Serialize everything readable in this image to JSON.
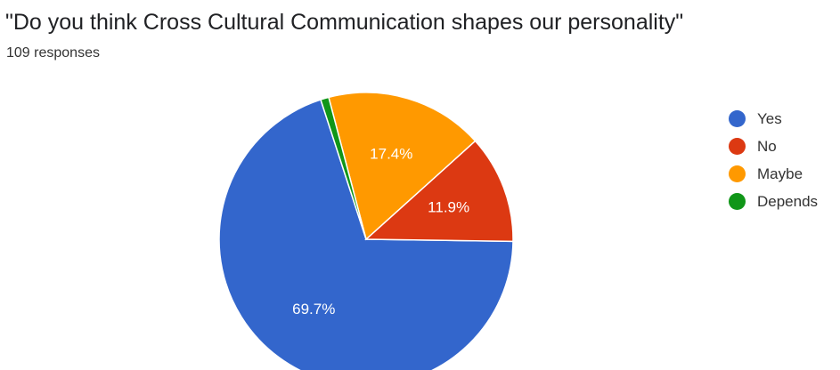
{
  "header": {
    "title": "\"Do you think Cross Cultural Communication shapes our personality\"",
    "responses": "109 responses"
  },
  "colors": {
    "yes": "#3366cc",
    "no": "#dc3912",
    "maybe": "#ff9900",
    "depends": "#109618",
    "slice_label": "#ffffff"
  },
  "chart_data": {
    "type": "pie",
    "title": "\"Do you think Cross Cultural Communication shapes our personality\"",
    "subtitle": "109 responses",
    "categories": [
      "Yes",
      "No",
      "Maybe",
      "Depends"
    ],
    "values": [
      69.7,
      11.9,
      17.4,
      0.9
    ],
    "slice_labels": [
      "69.7%",
      "11.9%",
      "17.4%",
      ""
    ],
    "colors": [
      "#3366cc",
      "#dc3912",
      "#ff9900",
      "#109618"
    ],
    "legend_position": "right",
    "start_angle_deg": 90,
    "direction": "counterclockwise"
  }
}
